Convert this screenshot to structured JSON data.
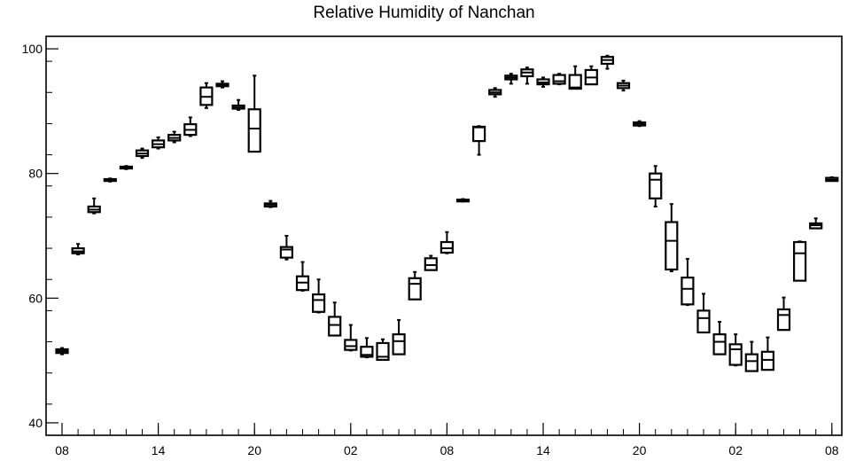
{
  "chart_data": {
    "type": "boxplot",
    "title": "Relative Humidity of Nanchan",
    "xlabel": "",
    "ylabel": "",
    "ylim": [
      38,
      102
    ],
    "yticks": [
      40,
      60,
      80,
      100
    ],
    "x_tick_labels": [
      "08",
      "14",
      "20",
      "02",
      "08",
      "14",
      "20",
      "02",
      "08"
    ],
    "x_tick_steps": [
      0,
      6,
      12,
      18,
      24,
      30,
      36,
      42,
      48
    ],
    "grid": false,
    "boxes": [
      {
        "step": 0,
        "min": 51.0,
        "q1": 51.2,
        "median": 51.5,
        "q3": 51.8,
        "max": 52.0
      },
      {
        "step": 1,
        "min": 67.0,
        "q1": 67.2,
        "median": 67.5,
        "q3": 68.0,
        "max": 68.7
      },
      {
        "step": 2,
        "min": 73.6,
        "q1": 73.8,
        "median": 74.2,
        "q3": 74.7,
        "max": 76.0
      },
      {
        "step": 3,
        "min": 78.7,
        "q1": 78.8,
        "median": 79.0,
        "q3": 79.1,
        "max": 79.2
      },
      {
        "step": 4,
        "min": 80.7,
        "q1": 80.8,
        "median": 81.0,
        "q3": 81.1,
        "max": 81.2
      },
      {
        "step": 5,
        "min": 82.5,
        "q1": 82.8,
        "median": 83.2,
        "q3": 83.7,
        "max": 84.0
      },
      {
        "step": 6,
        "min": 84.0,
        "q1": 84.2,
        "median": 84.7,
        "q3": 85.3,
        "max": 85.8
      },
      {
        "step": 7,
        "min": 85.0,
        "q1": 85.3,
        "median": 85.7,
        "q3": 86.2,
        "max": 86.7
      },
      {
        "step": 8,
        "min": 86.0,
        "q1": 86.2,
        "median": 87.0,
        "q3": 87.9,
        "max": 89.0
      },
      {
        "step": 9,
        "min": 90.5,
        "q1": 91.0,
        "median": 92.3,
        "q3": 93.8,
        "max": 94.5
      },
      {
        "step": 10,
        "min": 93.8,
        "q1": 94.0,
        "median": 94.2,
        "q3": 94.4,
        "max": 94.8
      },
      {
        "step": 11,
        "min": 90.2,
        "q1": 90.4,
        "median": 90.6,
        "q3": 90.9,
        "max": 91.8
      },
      {
        "step": 12,
        "min": 83.5,
        "q1": 83.5,
        "median": 87.2,
        "q3": 90.3,
        "max": 95.7
      },
      {
        "step": 13,
        "min": 74.6,
        "q1": 74.7,
        "median": 75.0,
        "q3": 75.2,
        "max": 75.6
      },
      {
        "step": 14,
        "min": 66.2,
        "q1": 66.5,
        "median": 67.8,
        "q3": 68.2,
        "max": 70.0
      },
      {
        "step": 15,
        "min": 61.2,
        "q1": 61.3,
        "median": 62.5,
        "q3": 63.5,
        "max": 65.8
      },
      {
        "step": 16,
        "min": 57.7,
        "q1": 57.8,
        "median": 59.7,
        "q3": 60.6,
        "max": 63.0
      },
      {
        "step": 17,
        "min": 54.0,
        "q1": 54.0,
        "median": 55.7,
        "q3": 57.0,
        "max": 59.3
      },
      {
        "step": 18,
        "min": 51.6,
        "q1": 51.7,
        "median": 52.3,
        "q3": 53.3,
        "max": 55.7
      },
      {
        "step": 19,
        "min": 50.5,
        "q1": 50.6,
        "median": 50.9,
        "q3": 52.2,
        "max": 53.6
      },
      {
        "step": 20,
        "min": 50.1,
        "q1": 50.1,
        "median": 50.6,
        "q3": 52.8,
        "max": 53.4
      },
      {
        "step": 21,
        "min": 51.0,
        "q1": 51.0,
        "median": 53.1,
        "q3": 54.2,
        "max": 56.5
      },
      {
        "step": 22,
        "min": 59.8,
        "q1": 59.8,
        "median": 62.3,
        "q3": 63.2,
        "max": 64.2
      },
      {
        "step": 23,
        "min": 64.5,
        "q1": 64.5,
        "median": 65.3,
        "q3": 66.4,
        "max": 66.8
      },
      {
        "step": 24,
        "min": 67.2,
        "q1": 67.3,
        "median": 68.0,
        "q3": 69.0,
        "max": 70.6
      },
      {
        "step": 25,
        "min": 75.5,
        "q1": 75.6,
        "median": 75.7,
        "q3": 75.8,
        "max": 75.9
      },
      {
        "step": 26,
        "min": 83.0,
        "q1": 85.2,
        "median": 87.4,
        "q3": 87.5,
        "max": 87.6
      },
      {
        "step": 27,
        "min": 92.3,
        "q1": 92.7,
        "median": 93.0,
        "q3": 93.4,
        "max": 93.7
      },
      {
        "step": 28,
        "min": 94.4,
        "q1": 95.1,
        "median": 95.4,
        "q3": 95.7,
        "max": 96.0
      },
      {
        "step": 29,
        "min": 94.4,
        "q1": 95.6,
        "median": 96.2,
        "q3": 96.7,
        "max": 97.0
      },
      {
        "step": 30,
        "min": 93.9,
        "q1": 94.3,
        "median": 94.6,
        "q3": 95.1,
        "max": 95.4
      },
      {
        "step": 31,
        "min": 94.3,
        "q1": 94.4,
        "median": 94.8,
        "q3": 95.8,
        "max": 96.0
      },
      {
        "step": 32,
        "min": 93.6,
        "q1": 93.6,
        "median": 93.8,
        "q3": 95.8,
        "max": 97.2
      },
      {
        "step": 33,
        "min": 94.3,
        "q1": 94.3,
        "median": 95.4,
        "q3": 96.6,
        "max": 97.2
      },
      {
        "step": 34,
        "min": 96.8,
        "q1": 97.6,
        "median": 98.2,
        "q3": 98.7,
        "max": 98.9
      },
      {
        "step": 35,
        "min": 93.3,
        "q1": 93.7,
        "median": 94.1,
        "q3": 94.5,
        "max": 94.9
      },
      {
        "step": 36,
        "min": 87.6,
        "q1": 87.7,
        "median": 88.0,
        "q3": 88.2,
        "max": 88.4
      },
      {
        "step": 37,
        "min": 74.7,
        "q1": 76.0,
        "median": 79.0,
        "q3": 80.0,
        "max": 81.2
      },
      {
        "step": 38,
        "min": 64.3,
        "q1": 64.6,
        "median": 69.2,
        "q3": 72.2,
        "max": 75.1
      },
      {
        "step": 39,
        "min": 58.9,
        "q1": 59.0,
        "median": 61.5,
        "q3": 63.3,
        "max": 66.3
      },
      {
        "step": 40,
        "min": 54.5,
        "q1": 54.5,
        "median": 56.8,
        "q3": 58.0,
        "max": 60.7
      },
      {
        "step": 41,
        "min": 51.0,
        "q1": 51.0,
        "median": 53.0,
        "q3": 54.2,
        "max": 56.2
      },
      {
        "step": 42,
        "min": 49.2,
        "q1": 49.3,
        "median": 51.8,
        "q3": 52.6,
        "max": 54.2
      },
      {
        "step": 43,
        "min": 48.3,
        "q1": 48.3,
        "median": 49.9,
        "q3": 51.0,
        "max": 53.0
      },
      {
        "step": 44,
        "min": 48.5,
        "q1": 48.5,
        "median": 50.1,
        "q3": 51.4,
        "max": 53.7
      },
      {
        "step": 45,
        "min": 54.9,
        "q1": 54.9,
        "median": 57.3,
        "q3": 58.2,
        "max": 60.1
      },
      {
        "step": 46,
        "min": 62.8,
        "q1": 62.8,
        "median": 67.2,
        "q3": 69.0,
        "max": 69.1
      },
      {
        "step": 47,
        "min": 71.2,
        "q1": 71.2,
        "median": 71.7,
        "q3": 72.0,
        "max": 72.8
      },
      {
        "step": 48,
        "min": 78.8,
        "q1": 78.8,
        "median": 79.0,
        "q3": 79.3,
        "max": 79.4
      }
    ]
  }
}
